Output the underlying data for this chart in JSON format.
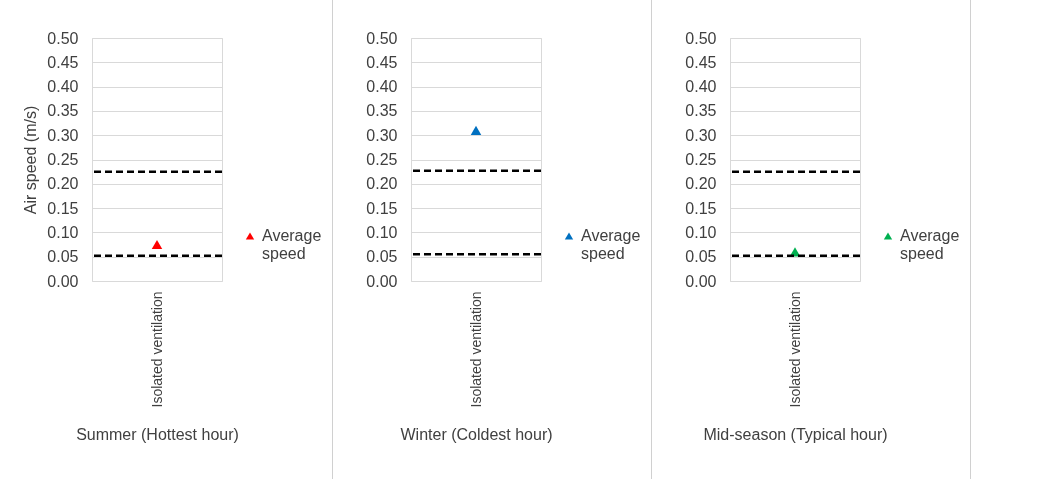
{
  "chart_data": [
    {
      "type": "scatter",
      "xlabel": "Summer (Hottest hour)",
      "ylabel": "Air speed (m/s)",
      "categories": [
        "Isolated ventilation"
      ],
      "series": [
        {
          "name": "Average speed",
          "color": "#ff0000",
          "values": [
            0.075
          ]
        }
      ],
      "ylim": [
        0,
        0.5
      ],
      "yticks": [
        {
          "value": 0,
          "label": "0.00"
        },
        0.05,
        {
          "value": 0.1,
          "label": "0.10"
        },
        0.15,
        {
          "value": 0.2,
          "label": "0.20"
        },
        0.25,
        {
          "value": 0.3,
          "label": "0.30"
        },
        0.35,
        {
          "value": 0.4,
          "label": "0.40"
        },
        0.45,
        {
          "value": 0.5,
          "label": "0.50"
        }
      ],
      "ref_lines": [
        {
          "axis": "y",
          "value": 0.225,
          "color": "#000000",
          "line_style": "dashed"
        },
        {
          "axis": "y",
          "value": 0.052,
          "color": "#000000",
          "line_style": "dashed"
        }
      ],
      "grid": "y",
      "legend": "right",
      "marker": "triangle"
    },
    {
      "type": "scatter",
      "xlabel": "Winter (Coldest hour)",
      "categories": [
        "Isolated ventilation"
      ],
      "series": [
        {
          "name": "Average speed",
          "color": "#0070c0",
          "values": [
            0.31
          ]
        }
      ],
      "ylim": [
        0,
        0.5
      ],
      "yticks": [
        {
          "value": 0,
          "label": "0.00"
        },
        0.05,
        {
          "value": 0.1,
          "label": "0.10"
        },
        0.15,
        {
          "value": 0.2,
          "label": "0.20"
        },
        0.25,
        {
          "value": 0.3,
          "label": "0.30"
        },
        0.35,
        {
          "value": 0.4,
          "label": "0.40"
        },
        0.45,
        {
          "value": 0.5,
          "label": "0.50"
        }
      ],
      "ref_lines": [
        {
          "axis": "y",
          "value": 0.227,
          "color": "#000000",
          "line_style": "dashed"
        },
        {
          "axis": "y",
          "value": 0.055,
          "color": "#000000",
          "line_style": "dashed"
        }
      ],
      "grid": "y",
      "legend": "right",
      "marker": "triangle"
    },
    {
      "type": "scatter",
      "xlabel": "Mid-season (Typical hour)",
      "categories": [
        "Isolated ventilation"
      ],
      "series": [
        {
          "name": "Average speed",
          "color": "#00b050",
          "values": [
            0.06
          ]
        }
      ],
      "ylim": [
        0,
        0.5
      ],
      "yticks": [
        {
          "value": 0,
          "label": "0.00"
        },
        0.05,
        {
          "value": 0.1,
          "label": "0.10"
        },
        0.15,
        {
          "value": 0.2,
          "label": "0.20"
        },
        0.25,
        {
          "value": 0.3,
          "label": "0.30"
        },
        0.35,
        {
          "value": 0.4,
          "label": "0.40"
        },
        0.45,
        {
          "value": 0.5,
          "label": "0.50"
        }
      ],
      "ref_lines": [
        {
          "axis": "y",
          "value": 0.225,
          "color": "#000000",
          "line_style": "dashed"
        },
        {
          "axis": "y",
          "value": 0.052,
          "color": "#000000",
          "line_style": "dashed"
        }
      ],
      "grid": "y",
      "legend": "right",
      "marker": "triangle"
    }
  ]
}
